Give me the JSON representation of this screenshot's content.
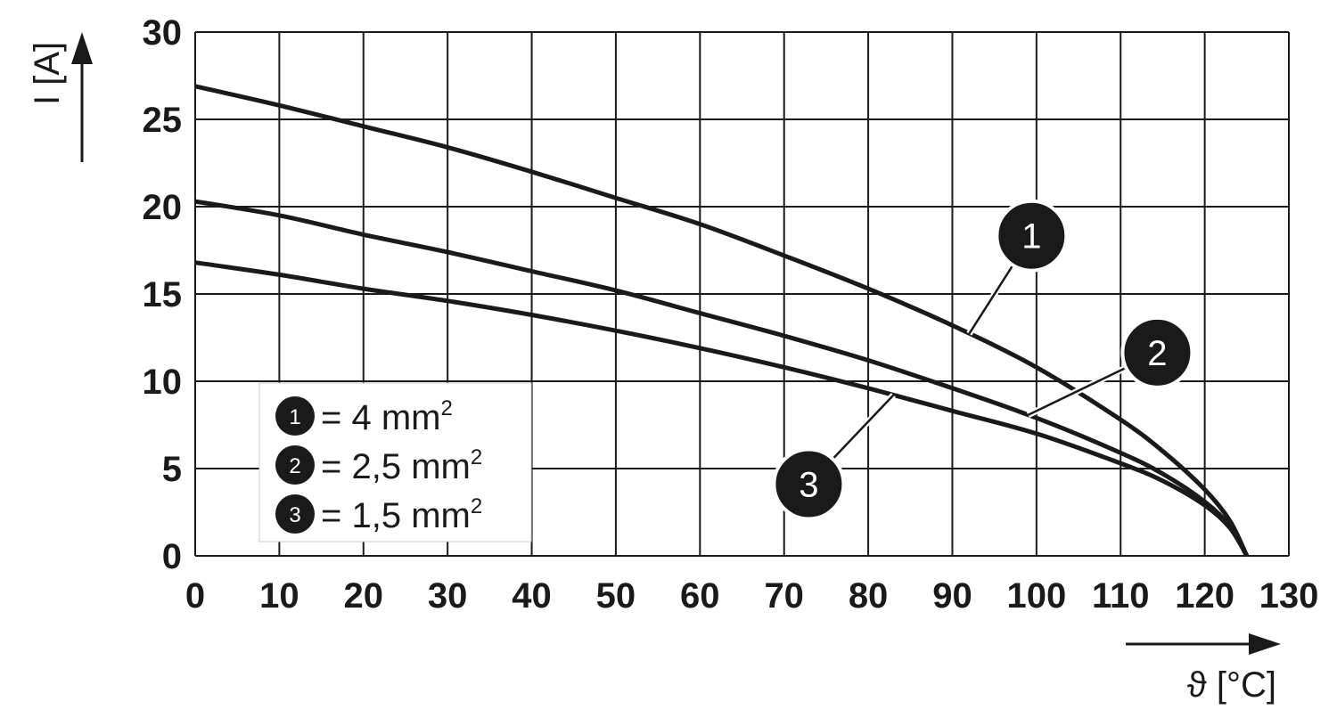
{
  "chart_data": {
    "type": "line",
    "ylabel": "I [A]",
    "xlabel": "ϑ [°C]",
    "xlim": [
      0,
      130
    ],
    "ylim": [
      0,
      30
    ],
    "x_ticks": [
      "0",
      "10",
      "20",
      "30",
      "40",
      "50",
      "60",
      "70",
      "80",
      "90",
      "100",
      "110",
      "120",
      "130"
    ],
    "y_ticks": [
      "0",
      "5",
      "10",
      "15",
      "20",
      "25",
      "30"
    ],
    "grid": true,
    "legend_position": "bottom-left",
    "legend": [
      {
        "marker": "1",
        "text": "= 4 mm",
        "sup": "2"
      },
      {
        "marker": "2",
        "text": "= 2,5 mm",
        "sup": "2"
      },
      {
        "marker": "3",
        "text": "= 1,5 mm",
        "sup": "2"
      }
    ],
    "series": [
      {
        "name": "1",
        "x": [
          0,
          10,
          20,
          30,
          40,
          50,
          60,
          70,
          80,
          90,
          100,
          110,
          115,
          120,
          123,
          125
        ],
        "y": [
          26.9,
          25.8,
          24.6,
          23.4,
          22.0,
          20.5,
          19.0,
          17.2,
          15.3,
          13.2,
          10.8,
          7.8,
          6.0,
          3.8,
          2.0,
          0
        ]
      },
      {
        "name": "2",
        "x": [
          0,
          10,
          20,
          30,
          40,
          50,
          60,
          70,
          80,
          90,
          100,
          110,
          115,
          120,
          123,
          125
        ],
        "y": [
          20.3,
          19.5,
          18.4,
          17.4,
          16.3,
          15.2,
          13.9,
          12.6,
          11.2,
          9.6,
          7.9,
          5.9,
          4.7,
          3.1,
          1.7,
          0
        ]
      },
      {
        "name": "3",
        "x": [
          0,
          10,
          20,
          30,
          40,
          50,
          60,
          70,
          80,
          90,
          100,
          110,
          115,
          120,
          123,
          125
        ],
        "y": [
          16.8,
          16.1,
          15.3,
          14.6,
          13.8,
          12.9,
          11.9,
          10.8,
          9.6,
          8.3,
          7.0,
          5.3,
          4.3,
          2.9,
          1.6,
          0
        ]
      }
    ],
    "callouts": [
      {
        "label": "1",
        "series": "1",
        "x": 92
      },
      {
        "label": "2",
        "series": "2",
        "x": 99
      },
      {
        "label": "3",
        "series": "3",
        "x": 83
      }
    ]
  }
}
